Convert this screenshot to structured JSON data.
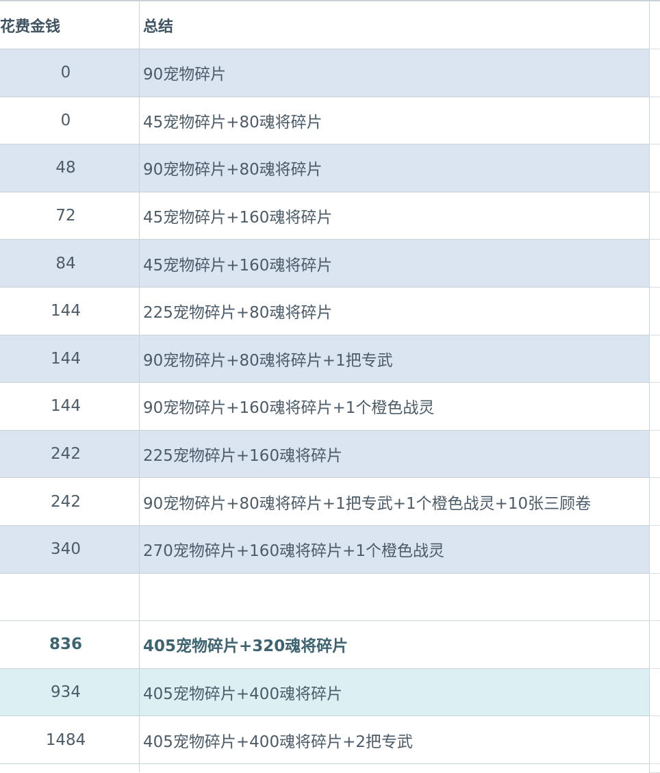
{
  "table": {
    "header": [
      "花费金钱",
      "总结"
    ],
    "rows": [
      [
        0,
        "90宠物碎片"
      ],
      [
        0,
        "45宠物碎片+80魂将碎片"
      ],
      [
        48,
        "90宠物碎片+80魂将碎片"
      ],
      [
        72,
        "45宠物碎片+160魂将碎片"
      ],
      [
        84,
        "45宠物碎片+160魂将碎片"
      ],
      [
        144,
        "225宠物碎片+80魂将碎片"
      ],
      [
        144,
        "90宠物碎片+80魂将碎片+1把专武"
      ],
      [
        144,
        "90宠物碎片+160魂将碎片+1个橙色战灵"
      ],
      [
        242,
        "225宠物碎片+160魂将碎片"
      ],
      [
        242,
        "90宠物碎片+80魂将碎片+1把专武+1个橙色战灵+10张三顾卷"
      ],
      [
        340,
        "270宠物碎片+160魂将碎片+1个橙色战灵"
      ]
    ],
    "summary_rows": [
      [
        836,
        "405宠物碎片+320魂将碎片"
      ],
      [
        934,
        "405宠物碎片+400魂将碎片"
      ],
      [
        1484,
        "405宠物碎片+400魂将碎片+2把专武"
      ]
    ]
  }
}
